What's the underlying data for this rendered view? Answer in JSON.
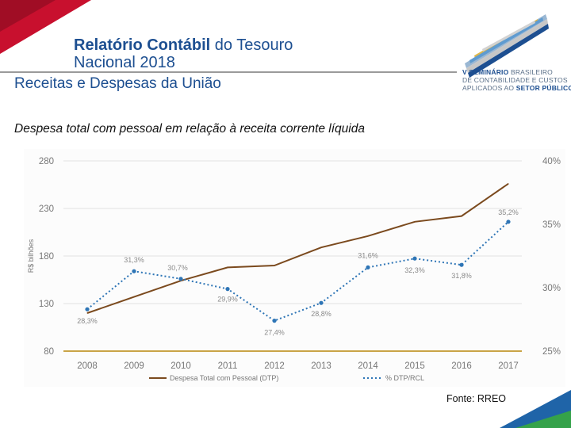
{
  "header": {
    "title_bold": "Relatório Contábil",
    "title_rest": " do Tesouro",
    "title_line2": "Nacional 2018",
    "section": "Receitas e Despesas da União",
    "subtitle": "Despesa total com pessoal em relação à receita corrente líquida"
  },
  "logo": {
    "line1_bold": "V SEMINÁRIO",
    "line1_rest": " BRASILEIRO",
    "line2": "DE CONTABILIDADE E CUSTOS",
    "line3_rest": "APLICADOS AO ",
    "line3_bold": "SETOR PÚBLICO"
  },
  "footer": {
    "source": "Fonte: RREO"
  },
  "colors": {
    "brand_blue": "#1d4f91",
    "brand_red": "#c8102e",
    "series_dtp": "#7b4a1e",
    "series_pct": "#2e75b6",
    "baseline": "#b8860b"
  },
  "chart_data": {
    "type": "line",
    "categories": [
      "2008",
      "2009",
      "2010",
      "2011",
      "2012",
      "2013",
      "2014",
      "2015",
      "2016",
      "2017"
    ],
    "y_left": {
      "label": "R$ bilhões",
      "ticks": [
        "280",
        "230",
        "180",
        "130",
        "80"
      ],
      "range": [
        80,
        280
      ]
    },
    "y_right": {
      "ticks": [
        "40%",
        "35%",
        "30%",
        "25%"
      ],
      "range": [
        25,
        40
      ]
    },
    "series": [
      {
        "name": "Despesa Total com Pessoal (DTP)",
        "axis": "left",
        "values": [
          120,
          137,
          154,
          168,
          170,
          189,
          201,
          216,
          222,
          256
        ]
      },
      {
        "name": "% DTP/RCL",
        "axis": "right",
        "values": [
          28.3,
          31.3,
          30.7,
          29.9,
          27.4,
          28.8,
          31.6,
          32.3,
          31.8,
          35.2
        ],
        "labels": [
          "28,3%",
          "31,3%",
          "30,7%",
          "29,9%",
          "27,4%",
          "28,8%",
          "31,6%",
          "32,3%",
          "31,8%",
          "35,2%"
        ]
      }
    ]
  }
}
